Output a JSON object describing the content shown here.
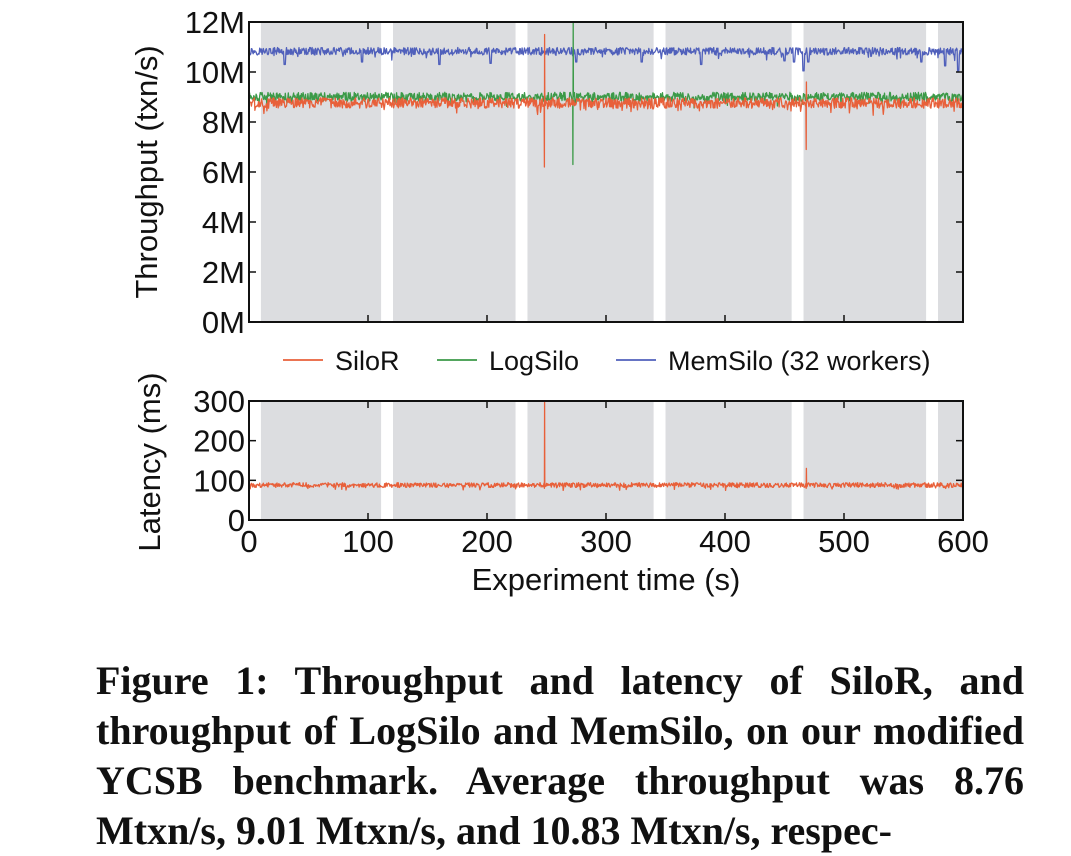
{
  "chart_data": [
    {
      "type": "line",
      "ylabel": "Throughput (txn/s)",
      "xlim": [
        0,
        600
      ],
      "ylim": [
        0,
        12000000
      ],
      "y_ticks": [
        "0M",
        "2M",
        "4M",
        "6M",
        "8M",
        "10M",
        "12M"
      ],
      "y_tick_values": [
        0,
        2000000,
        4000000,
        6000000,
        8000000,
        10000000,
        12000000
      ],
      "checkpoint_shading": [
        [
          10,
          111
        ],
        [
          121,
          224
        ],
        [
          234,
          340
        ],
        [
          350,
          456
        ],
        [
          466,
          569
        ],
        [
          579,
          600
        ]
      ],
      "legend": {
        "placement": "below"
      },
      "series": [
        {
          "name": "MemSilo (32 workers)",
          "color": "#5060bb",
          "mean": 10830000,
          "noise": 150000,
          "dips": [
            [
              30,
              10300000
            ],
            [
              95,
              10400000
            ],
            [
              160,
              10300000
            ],
            [
              203,
              10350000
            ],
            [
              275,
              10400000
            ],
            [
              330,
              10400000
            ],
            [
              380,
              10300000
            ],
            [
              450,
              10450000
            ],
            [
              458,
              10400000
            ],
            [
              466,
              10050000
            ],
            [
              470,
              10400000
            ],
            [
              565,
              10400000
            ],
            [
              585,
              10250000
            ],
            [
              596,
              10050000
            ]
          ]
        },
        {
          "name": "LogSilo",
          "color": "#3c9a48",
          "mean": 9010000,
          "noise": 180000,
          "spikes": [
            [
              272,
              6300000,
              12000000
            ]
          ]
        },
        {
          "name": "SiloR",
          "color": "#e8603a",
          "mean": 8760000,
          "noise": 210000,
          "spikes": [
            [
              248,
              6200000,
              11500000
            ],
            [
              468,
              6900000,
              9600000
            ]
          ]
        }
      ]
    },
    {
      "type": "line",
      "xlabel": "Experiment time (s)",
      "ylabel": "Latency (ms)",
      "xlim": [
        0,
        600
      ],
      "ylim": [
        0,
        300
      ],
      "x_ticks": [
        "0",
        "100",
        "200",
        "300",
        "400",
        "500",
        "600"
      ],
      "x_tick_values": [
        0,
        100,
        200,
        300,
        400,
        500,
        600
      ],
      "y_ticks": [
        "0",
        "100",
        "200",
        "300"
      ],
      "y_tick_values": [
        0,
        100,
        200,
        300
      ],
      "checkpoint_shading": [
        [
          10,
          111
        ],
        [
          121,
          224
        ],
        [
          234,
          340
        ],
        [
          350,
          456
        ],
        [
          466,
          569
        ],
        [
          579,
          600
        ]
      ],
      "series": [
        {
          "name": "SiloR",
          "color": "#e8603a",
          "mean": 88,
          "noise": 6,
          "spikes": [
            [
              248,
              80,
              300
            ],
            [
              468,
              80,
              130
            ]
          ]
        }
      ]
    }
  ],
  "caption": "Figure 1: Throughput and latency of SiloR, and throughput of LogSilo and MemSilo, on our modified YCSB benchmark. Average throughput was 8.76 Mtxn/s, 9.01 Mtxn/s, and 10.83 Mtxn/s, respec-"
}
